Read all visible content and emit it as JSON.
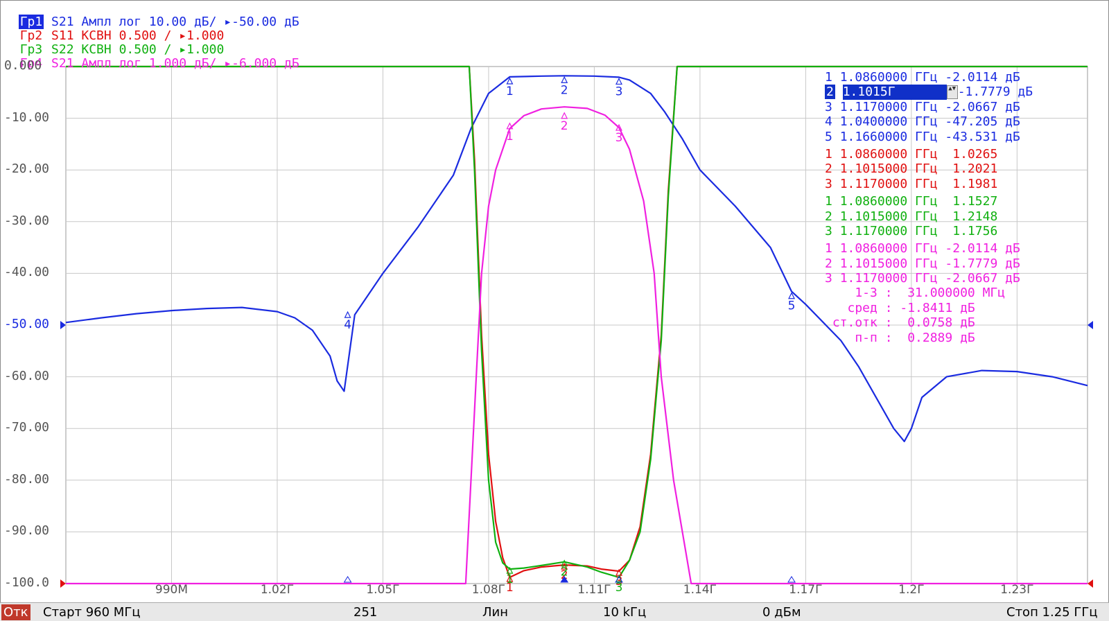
{
  "traces": [
    {
      "tag": "Гр1",
      "text": " S21 Ампл лог 10.00 дБ/ ▸-50.00 дБ",
      "color": "#1a2be0",
      "selected": true
    },
    {
      "tag": "Гр2",
      "text": " S11 КСВН 0.500 / ▸1.000",
      "color": "#e01010",
      "selected": false
    },
    {
      "tag": "Гр3",
      "text": " S22 КСВН 0.500 / ▸1.000",
      "color": "#10b010",
      "selected": false
    },
    {
      "tag": "Гр4",
      "text": " S21 Ампл лог 1.000 дБ/ ▸-6.000 дБ",
      "color": "#f020e0",
      "selected": false
    }
  ],
  "marker_table": {
    "groups": [
      {
        "color": "#1a2be0",
        "rows": [
          {
            "num": "1",
            "freq": "1.0860000 ГГц",
            "value": "-2.0114 дБ"
          },
          {
            "num": "2",
            "freq": "1.1015Г",
            "value": "-1.7779 дБ",
            "selected": true
          },
          {
            "num": "3",
            "freq": "1.1170000 ГГц",
            "value": "-2.0667 дБ"
          },
          {
            "num": "4",
            "freq": "1.0400000 ГГц",
            "value": "-47.205 дБ"
          },
          {
            "num": "5",
            "freq": "1.1660000 ГГц",
            "value": "-43.531 дБ"
          }
        ]
      },
      {
        "color": "#e01010",
        "rows": [
          {
            "num": "1",
            "freq": "1.0860000 ГГц",
            "value": " 1.0265"
          },
          {
            "num": "2",
            "freq": "1.1015000 ГГц",
            "value": " 1.2021"
          },
          {
            "num": "3",
            "freq": "1.1170000 ГГц",
            "value": " 1.1981"
          }
        ]
      },
      {
        "color": "#10b010",
        "rows": [
          {
            "num": "1",
            "freq": "1.0860000 ГГц",
            "value": " 1.1527"
          },
          {
            "num": "2",
            "freq": "1.1015000 ГГц",
            "value": " 1.2148"
          },
          {
            "num": "3",
            "freq": "1.1170000 ГГц",
            "value": " 1.1756"
          }
        ]
      },
      {
        "color": "#f020e0",
        "rows": [
          {
            "num": "1",
            "freq": "1.0860000 ГГц",
            "value": "-2.0114 дБ"
          },
          {
            "num": "2",
            "freq": "1.1015000 ГГц",
            "value": "-1.7779 дБ"
          },
          {
            "num": "3",
            "freq": "1.1170000 ГГц",
            "value": "-2.0667 дБ"
          }
        ]
      }
    ],
    "stats": [
      "    1-3 :  31.000000 МГц",
      "   сред : -1.8411 дБ",
      " ст.отк :  0.0758 дБ",
      "    п-п :  0.2889 дБ"
    ],
    "stats_color": "#f020e0"
  },
  "status_bar": {
    "badge": "Отк",
    "start": "Старт 960 МГц",
    "points": "251",
    "sweep": "Лин",
    "ifbw": "10 kГц",
    "power": "0 дБм",
    "stop": "Стоп 1.25 ГГц"
  },
  "chart_data": {
    "type": "line",
    "title": "",
    "xlabel": "",
    "ylabel": "",
    "xlim": [
      0.96,
      1.25
    ],
    "ylim": [
      -100,
      0
    ],
    "grid": true,
    "y_ticks": [
      "0.000",
      "-10.00",
      "-20.00",
      "-30.00",
      "-40.00",
      "-50.00",
      "-60.00",
      "-70.00",
      "-80.00",
      "-90.00",
      "-100.0"
    ],
    "x_ticks": [
      {
        "x": 0.99,
        "label": "990М"
      },
      {
        "x": 1.02,
        "label": "1.02Г"
      },
      {
        "x": 1.05,
        "label": "1.05Г"
      },
      {
        "x": 1.08,
        "label": "1.08Г"
      },
      {
        "x": 1.11,
        "label": "1.11Г"
      },
      {
        "x": 1.14,
        "label": "1.14Г"
      },
      {
        "x": 1.17,
        "label": "1.17Г"
      },
      {
        "x": 1.2,
        "label": "1.2Г"
      },
      {
        "x": 1.23,
        "label": "1.23Г"
      }
    ],
    "series": [
      {
        "name": "S21 Ампл лог 10.00 дБ/",
        "color": "#1a2be0",
        "x": [
          0.96,
          0.97,
          0.98,
          0.99,
          1.0,
          1.01,
          1.02,
          1.025,
          1.03,
          1.035,
          1.037,
          1.039,
          1.042,
          1.05,
          1.06,
          1.07,
          1.075,
          1.08,
          1.086,
          1.095,
          1.1015,
          1.11,
          1.117,
          1.12,
          1.126,
          1.13,
          1.135,
          1.14,
          1.15,
          1.16,
          1.166,
          1.17,
          1.18,
          1.185,
          1.19,
          1.195,
          1.198,
          1.2,
          1.203,
          1.21,
          1.22,
          1.23,
          1.24,
          1.25
        ],
        "values": [
          -49.5,
          -48.6,
          -47.8,
          -47.2,
          -46.8,
          -46.6,
          -47.4,
          -48.6,
          -51.0,
          -56.0,
          -60.8,
          -62.8,
          -48.0,
          -40.0,
          -31.0,
          -21.0,
          -12.0,
          -5.2,
          -2.0,
          -1.85,
          -1.78,
          -1.85,
          -2.07,
          -2.6,
          -5.2,
          -8.8,
          -14.0,
          -20.0,
          -27.0,
          -35.0,
          -43.5,
          -46.0,
          -53.0,
          -58.0,
          -64.0,
          -70.0,
          -72.5,
          -70.0,
          -64.0,
          -60.0,
          -58.8,
          -59.0,
          -60.0,
          -61.7
        ]
      },
      {
        "name": "S11 КСВН 0.500 / ▸1.000",
        "color": "#e01010",
        "x": [
          0.96,
          1.0,
          1.04,
          1.0745,
          1.076,
          1.078,
          1.08,
          1.082,
          1.084,
          1.086,
          1.09,
          1.095,
          1.1015,
          1.108,
          1.112,
          1.117,
          1.12,
          1.123,
          1.126,
          1.129,
          1.131,
          1.1335,
          1.14,
          1.2,
          1.25
        ],
        "values": [
          0,
          0,
          0,
          0,
          -18,
          -52,
          -75,
          -88,
          -95,
          -98.8,
          -97.5,
          -96.8,
          -96.4,
          -96.6,
          -97.2,
          -97.6,
          -95.5,
          -89,
          -75,
          -52,
          -24,
          0,
          0,
          0,
          0
        ]
      },
      {
        "name": "S22 КСВН 0.500 / ▸1.000",
        "color": "#10b010",
        "x": [
          0.96,
          1.0,
          1.04,
          1.0745,
          1.076,
          1.078,
          1.08,
          1.082,
          1.084,
          1.086,
          1.09,
          1.095,
          1.1015,
          1.108,
          1.112,
          1.117,
          1.12,
          1.123,
          1.126,
          1.129,
          1.131,
          1.1335,
          1.14,
          1.2,
          1.25
        ],
        "values": [
          0,
          0,
          0,
          0,
          -20,
          -55,
          -80,
          -92,
          -96,
          -97.2,
          -97.0,
          -96.5,
          -95.8,
          -96.8,
          -97.8,
          -98.8,
          -95.5,
          -90,
          -76,
          -53,
          -25,
          0,
          0,
          0,
          0
        ]
      },
      {
        "name": "S21 Ампл лог 1.000 дБ/",
        "color": "#f020e0",
        "x": [
          0.96,
          1.0,
          1.03,
          1.0735,
          1.0765,
          1.078,
          1.08,
          1.082,
          1.086,
          1.09,
          1.095,
          1.1015,
          1.108,
          1.113,
          1.117,
          1.12,
          1.124,
          1.127,
          1.129,
          1.1325,
          1.1375,
          1.17,
          1.25
        ],
        "values": [
          -100,
          -100,
          -100,
          -100,
          -60,
          -40,
          -27,
          -20,
          -12,
          -9.5,
          -8.2,
          -7.8,
          -8.1,
          -9.4,
          -11.8,
          -16,
          -26,
          -40,
          -60,
          -80,
          -100,
          -100,
          -100
        ]
      }
    ],
    "markers": [
      {
        "series": 0,
        "label": "1",
        "x": 1.086,
        "y": -2.0114
      },
      {
        "series": 0,
        "label": "2",
        "x": 1.1015,
        "y": -1.7779
      },
      {
        "series": 0,
        "label": "3",
        "x": 1.117,
        "y": -2.0667
      },
      {
        "series": 0,
        "label": "4",
        "x": 1.04,
        "y": -47.205
      },
      {
        "series": 0,
        "label": "5",
        "x": 1.166,
        "y": -43.531
      },
      {
        "series": 3,
        "label": "1",
        "x": 1.086,
        "y": -10.7
      },
      {
        "series": 3,
        "label": "2",
        "x": 1.1015,
        "y": -8.7
      },
      {
        "series": 3,
        "label": "3",
        "x": 1.117,
        "y": -11.0
      },
      {
        "series": 1,
        "label": "1",
        "x": 1.086,
        "y": -98.8
      },
      {
        "series": 1,
        "label": "2",
        "x": 1.1015,
        "y": -96.4
      },
      {
        "series": 1,
        "label": "3",
        "x": 1.117,
        "y": -97.6
      },
      {
        "series": 2,
        "label": "1",
        "x": 1.086,
        "y": -97.2
      },
      {
        "series": 2,
        "label": "2",
        "x": 1.1015,
        "y": -95.8
      },
      {
        "series": 2,
        "label": "3",
        "x": 1.117,
        "y": -98.8
      }
    ]
  }
}
